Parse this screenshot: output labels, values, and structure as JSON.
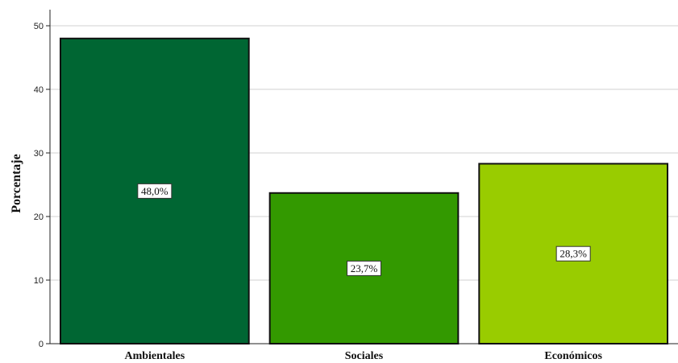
{
  "chart_data": {
    "type": "bar",
    "title": "",
    "xlabel": "",
    "ylabel": "Porcentaje",
    "categories": [
      "Ambientales",
      "Sociales",
      "Económicos"
    ],
    "values": [
      48.0,
      23.7,
      28.3
    ],
    "data_labels": [
      "48,0%",
      "23,7%",
      "28,3%"
    ],
    "colors": [
      "#006633",
      "#339900",
      "#99cc00"
    ],
    "ylim": [
      0,
      50
    ],
    "yticks": [
      0,
      10,
      20,
      30,
      40,
      50
    ],
    "grid": true,
    "legend": "none"
  }
}
